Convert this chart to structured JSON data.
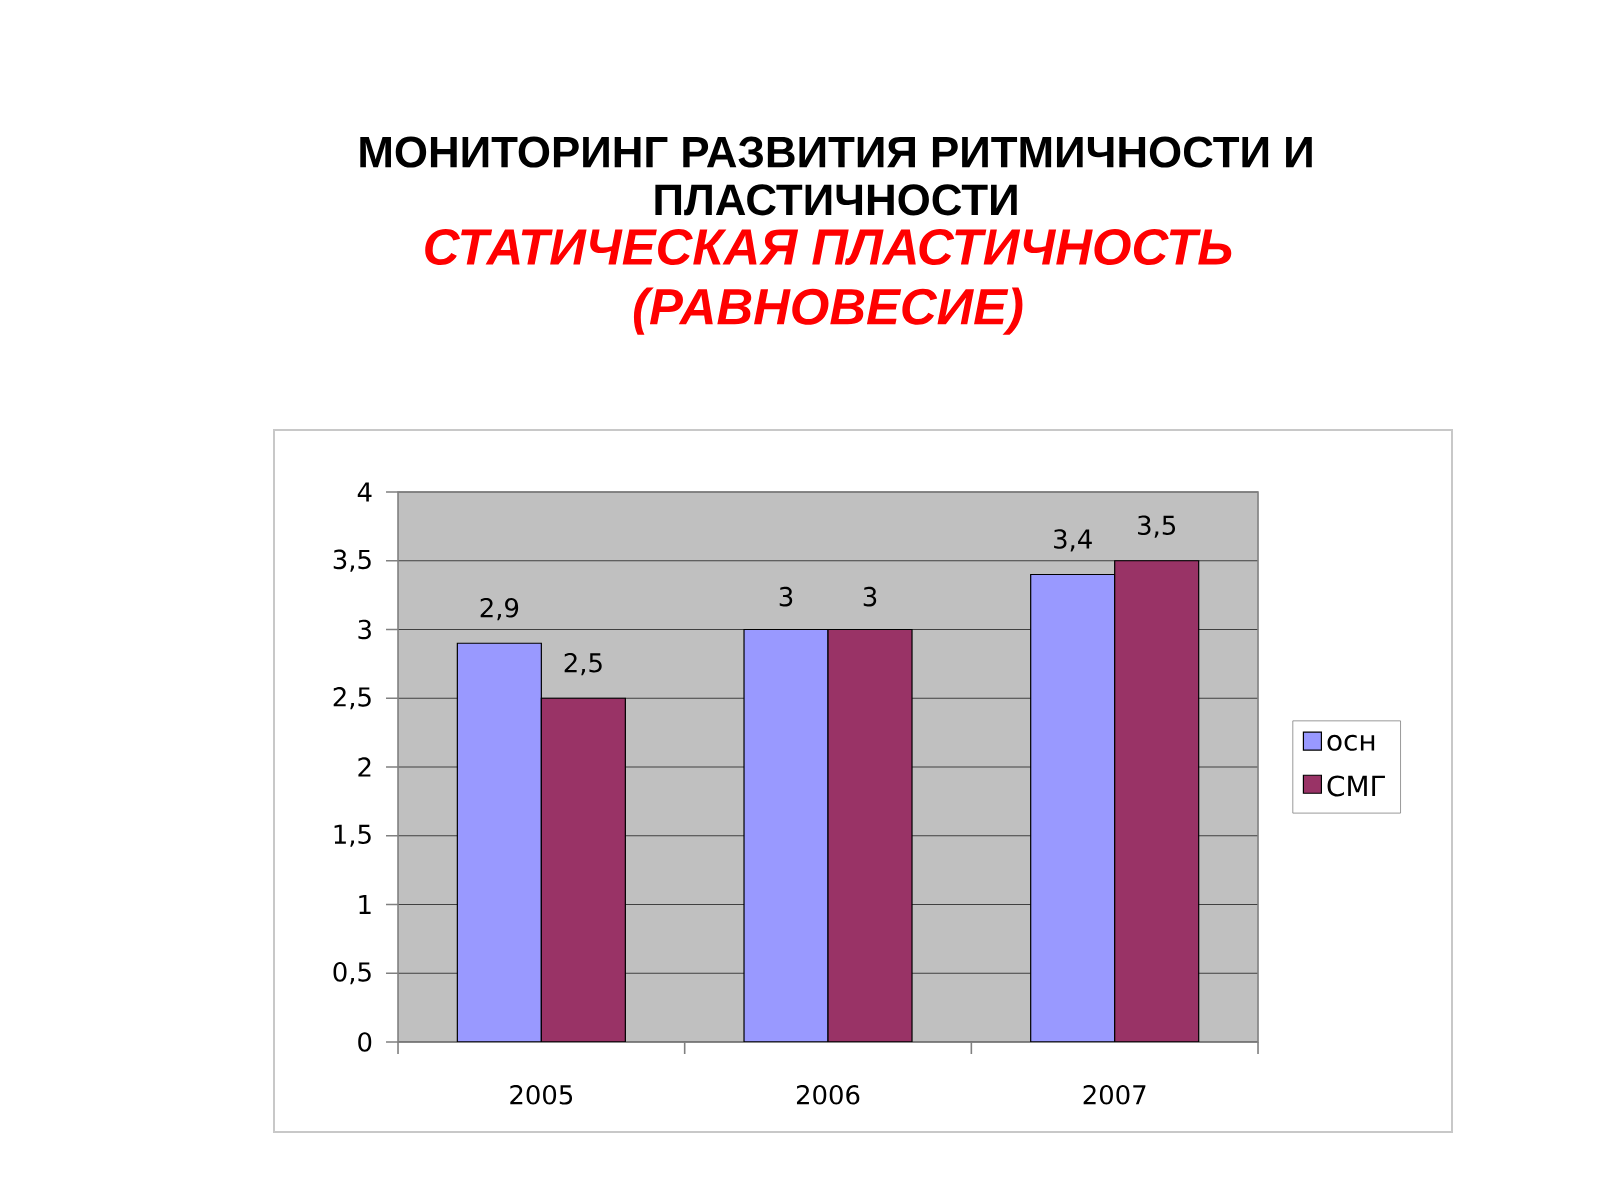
{
  "chart_data": {
    "type": "bar",
    "title": "МОНИТОРИНГ РАЗВИТИЯ РИТМИЧНОСТИ И ПЛАСТИЧНОСТИ",
    "subtitle": "СТАТИЧЕСКАЯ ПЛАСТИЧНОСТЬ (РАВНОВЕСИЕ)",
    "categories": [
      "2005",
      "2006",
      "2007"
    ],
    "series": [
      {
        "name": "осн",
        "color": "#9999ff",
        "values": [
          2.9,
          3,
          3.4
        ],
        "value_labels": [
          "2,9",
          "3",
          "3,4"
        ]
      },
      {
        "name": "СМГ",
        "color": "#993366",
        "values": [
          2.5,
          3,
          3.5
        ],
        "value_labels": [
          "2,5",
          "3",
          "3,5"
        ]
      }
    ],
    "ylim": [
      0,
      4
    ],
    "yticks": [
      0,
      {
        "value": 0.5,
        "label": "0,5"
      },
      1,
      {
        "value": 1.5,
        "label": "1,5"
      },
      2,
      {
        "value": 2.5,
        "label": "2,5"
      },
      3,
      {
        "value": 3.5,
        "label": "3,5"
      },
      4
    ],
    "grid": "y",
    "legend": "right"
  }
}
